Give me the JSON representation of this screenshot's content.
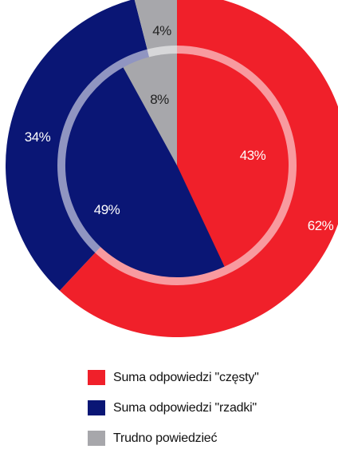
{
  "chart_data": {
    "type": "pie",
    "rings": [
      {
        "ring": "outer",
        "slices": [
          {
            "label": "Suma odpowiedzi \"częsty\"",
            "value": 62,
            "display": "62%",
            "color": "#f0202a"
          },
          {
            "label": "Suma odpowiedzi \"rzadki\"",
            "value": 34,
            "display": "34%",
            "color": "#0a1675"
          },
          {
            "label": "Trudno powiedzieć",
            "value": 4,
            "display": "4%",
            "color": "#a7a7ab"
          }
        ]
      },
      {
        "ring": "inner",
        "slices": [
          {
            "label": "Suma odpowiedzi \"częsty\"",
            "value": 43,
            "display": "43%",
            "color": "#f0202a"
          },
          {
            "label": "Suma odpowiedzi \"rzadki\"",
            "value": 49,
            "display": "49%",
            "color": "#0a1675"
          },
          {
            "label": "Trudno powiedzieć",
            "value": 8,
            "display": "8%",
            "color": "#a7a7ab"
          }
        ]
      }
    ],
    "legend": {
      "placement": "bottom",
      "items": [
        {
          "label": "Suma odpowiedzi \"częsty\"",
          "color": "#f0202a"
        },
        {
          "label": "Suma odpowiedzi \"rzadki\"",
          "color": "#0a1675"
        },
        {
          "label": "Trudno powiedzieć",
          "color": "#a7a7ab"
        }
      ]
    }
  }
}
